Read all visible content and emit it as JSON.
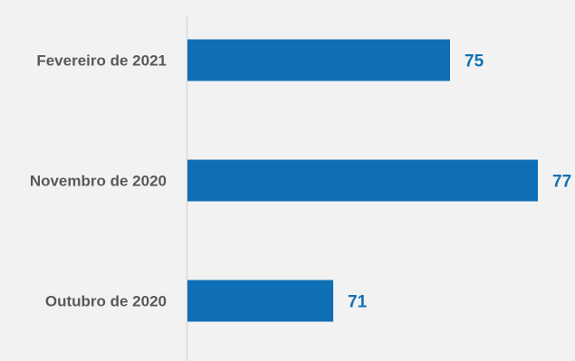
{
  "chart_data": {
    "type": "bar",
    "orientation": "horizontal",
    "categories": [
      "Fevereiro de 2021",
      "Novembro de 2020",
      "Outubro de 2020"
    ],
    "values": [
      75,
      77,
      71
    ],
    "data_labels": [
      "75",
      "77",
      "71"
    ],
    "title": "",
    "xlabel": "",
    "ylabel": "",
    "xlim": [
      56,
      77
    ],
    "grid": false,
    "legend": "none",
    "colors": {
      "bar": "#0f6fb5",
      "value_label": "#1070b4",
      "category_label": "#595959",
      "axis_line": "#d9d9d9",
      "background": "#f2f2f2"
    }
  }
}
